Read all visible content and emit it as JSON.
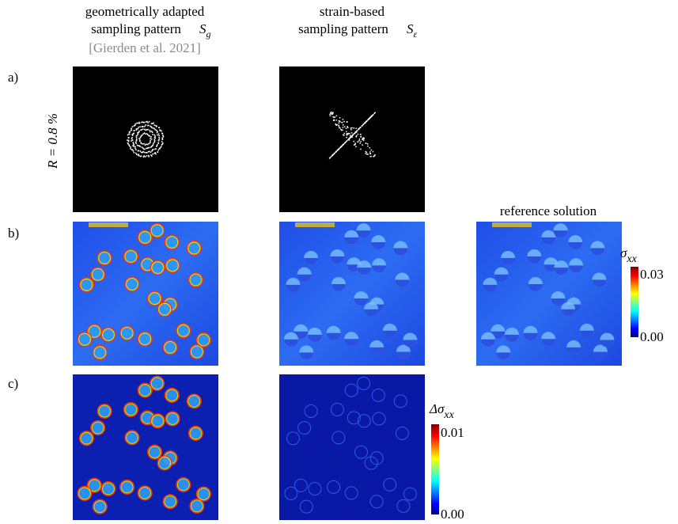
{
  "columns": [
    {
      "title_line1": "geometrically adapted",
      "title_line2": "sampling pattern",
      "symbol": "S",
      "subscript": "g",
      "citation": "[Gierden et al. 2021]"
    },
    {
      "title_line1": "strain-based",
      "title_line2": "sampling pattern",
      "symbol": "S",
      "subscript": "ε"
    },
    {
      "title_line1": "reference solution"
    }
  ],
  "rows": [
    "a)",
    "b)",
    "c)"
  ],
  "ratio_label": "R = 0.8 %",
  "colorbars": [
    {
      "symbol": "σ",
      "subscript": "xx",
      "max": "0.03",
      "min": "0.00"
    },
    {
      "symbol": "Δσ",
      "subscript": "xx",
      "max": "0.01",
      "min": "0.00"
    }
  ]
}
